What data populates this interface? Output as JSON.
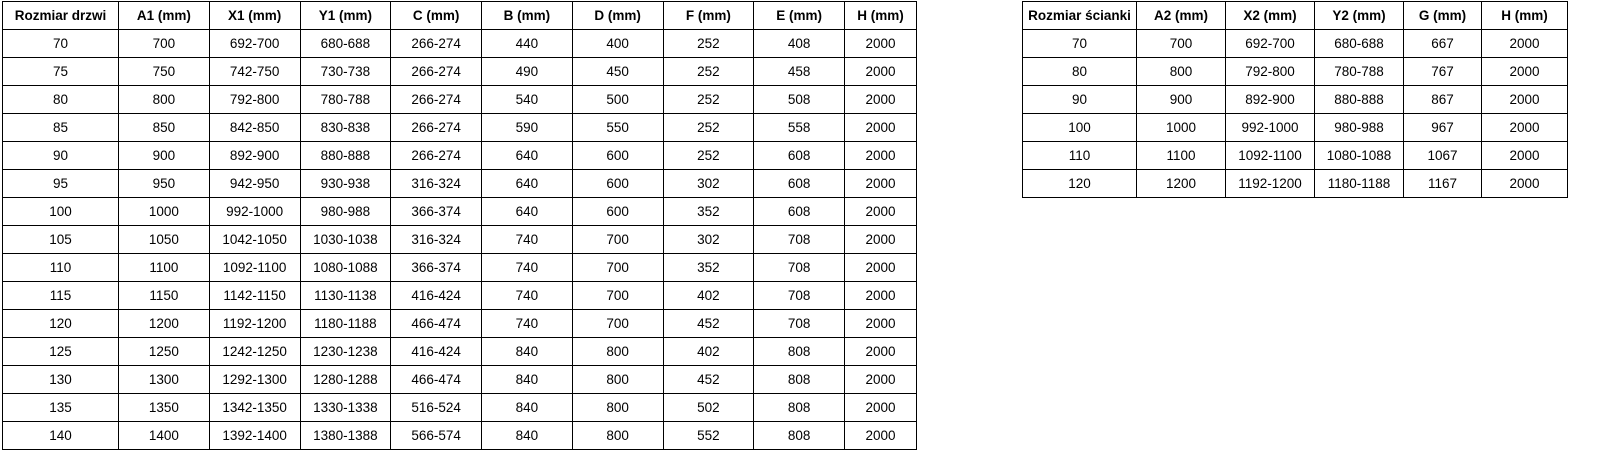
{
  "colors": {
    "background": "#ffffff",
    "text": "#000000",
    "border": "#000000"
  },
  "tables": [
    {
      "headers": [
        "Rozmiar drzwi",
        "A1 (mm)",
        "X1 (mm)",
        "Y1 (mm)",
        "C (mm)",
        "B (mm)",
        "D (mm)",
        "F (mm)",
        "E (mm)",
        "H (mm)"
      ],
      "rows": [
        [
          "70",
          "700",
          "692-700",
          "680-688",
          "266-274",
          "440",
          "400",
          "252",
          "408",
          "2000"
        ],
        [
          "75",
          "750",
          "742-750",
          "730-738",
          "266-274",
          "490",
          "450",
          "252",
          "458",
          "2000"
        ],
        [
          "80",
          "800",
          "792-800",
          "780-788",
          "266-274",
          "540",
          "500",
          "252",
          "508",
          "2000"
        ],
        [
          "85",
          "850",
          "842-850",
          "830-838",
          "266-274",
          "590",
          "550",
          "252",
          "558",
          "2000"
        ],
        [
          "90",
          "900",
          "892-900",
          "880-888",
          "266-274",
          "640",
          "600",
          "252",
          "608",
          "2000"
        ],
        [
          "95",
          "950",
          "942-950",
          "930-938",
          "316-324",
          "640",
          "600",
          "302",
          "608",
          "2000"
        ],
        [
          "100",
          "1000",
          "992-1000",
          "980-988",
          "366-374",
          "640",
          "600",
          "352",
          "608",
          "2000"
        ],
        [
          "105",
          "1050",
          "1042-1050",
          "1030-1038",
          "316-324",
          "740",
          "700",
          "302",
          "708",
          "2000"
        ],
        [
          "110",
          "1100",
          "1092-1100",
          "1080-1088",
          "366-374",
          "740",
          "700",
          "352",
          "708",
          "2000"
        ],
        [
          "115",
          "1150",
          "1142-1150",
          "1130-1138",
          "416-424",
          "740",
          "700",
          "402",
          "708",
          "2000"
        ],
        [
          "120",
          "1200",
          "1192-1200",
          "1180-1188",
          "466-474",
          "740",
          "700",
          "452",
          "708",
          "2000"
        ],
        [
          "125",
          "1250",
          "1242-1250",
          "1230-1238",
          "416-424",
          "840",
          "800",
          "402",
          "808",
          "2000"
        ],
        [
          "130",
          "1300",
          "1292-1300",
          "1280-1288",
          "466-474",
          "840",
          "800",
          "452",
          "808",
          "2000"
        ],
        [
          "135",
          "1350",
          "1342-1350",
          "1330-1338",
          "516-524",
          "840",
          "800",
          "502",
          "808",
          "2000"
        ],
        [
          "140",
          "1400",
          "1392-1400",
          "1380-1388",
          "566-574",
          "840",
          "800",
          "552",
          "808",
          "2000"
        ]
      ]
    },
    {
      "headers": [
        "Rozmiar ścianki",
        "A2 (mm)",
        "X2 (mm)",
        "Y2 (mm)",
        "G (mm)",
        "H (mm)"
      ],
      "rows": [
        [
          "70",
          "700",
          "692-700",
          "680-688",
          "667",
          "2000"
        ],
        [
          "80",
          "800",
          "792-800",
          "780-788",
          "767",
          "2000"
        ],
        [
          "90",
          "900",
          "892-900",
          "880-888",
          "867",
          "2000"
        ],
        [
          "100",
          "1000",
          "992-1000",
          "980-988",
          "967",
          "2000"
        ],
        [
          "110",
          "1100",
          "1092-1100",
          "1080-1088",
          "1067",
          "2000"
        ],
        [
          "120",
          "1200",
          "1192-1200",
          "1180-1188",
          "1167",
          "2000"
        ]
      ]
    }
  ]
}
